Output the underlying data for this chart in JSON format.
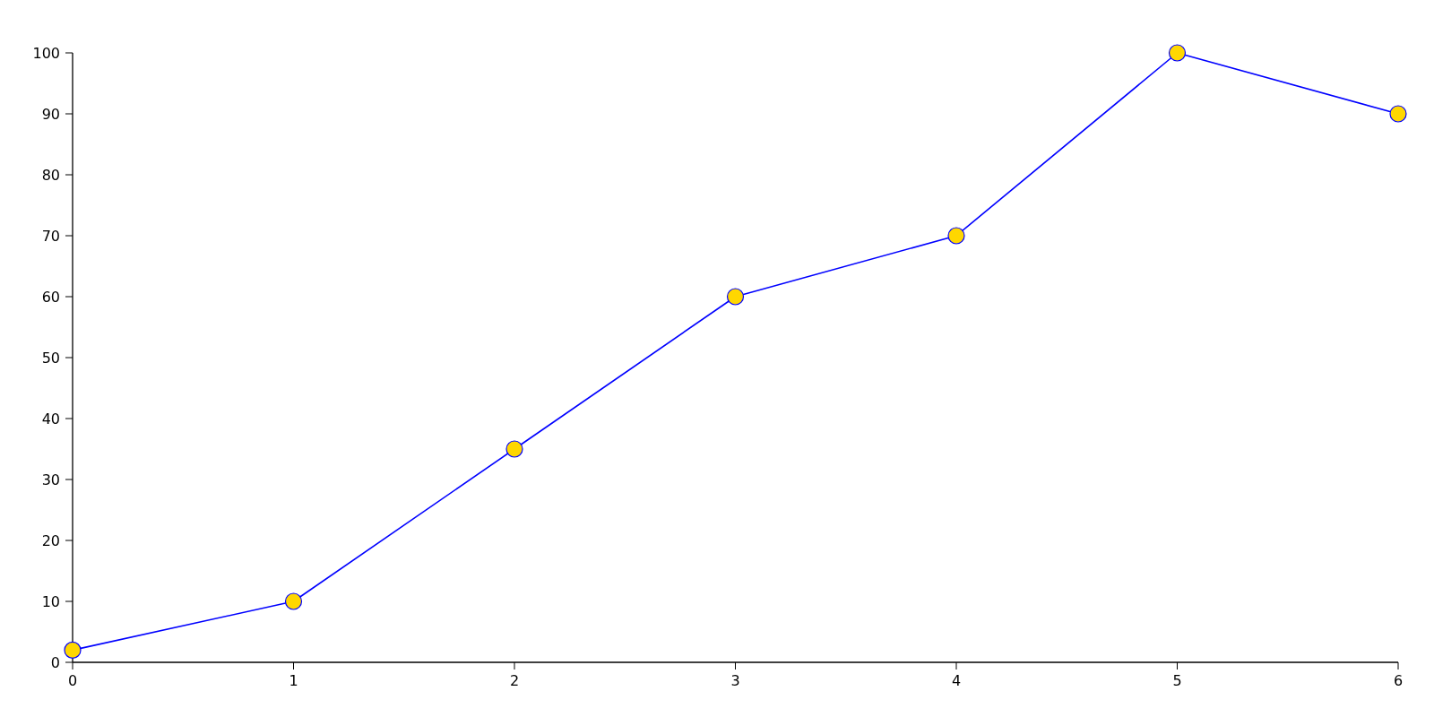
{
  "chart_data": {
    "type": "line",
    "x": [
      0,
      1,
      2,
      3,
      4,
      5,
      6
    ],
    "series": [
      {
        "color": "#0000ff",
        "values": [
          2,
          10,
          35,
          60,
          70,
          100,
          90
        ]
      }
    ],
    "xlim": [
      0,
      6
    ],
    "xticks": [
      0,
      1,
      2,
      3,
      4,
      5,
      6
    ],
    "ylim": [
      0,
      100
    ],
    "yticks": [
      0,
      10,
      20,
      30,
      40,
      50,
      60,
      70,
      80,
      90,
      100
    ],
    "grid": false,
    "marker": "circle",
    "line_style": "solid"
  }
}
